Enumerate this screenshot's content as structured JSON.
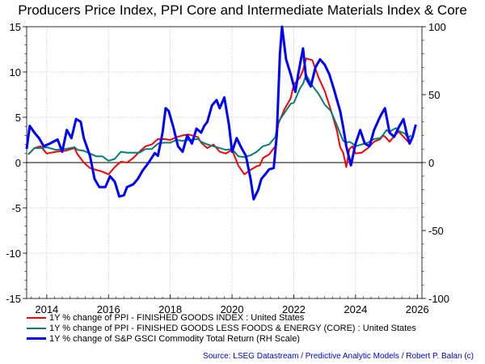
{
  "chart_data": {
    "type": "line",
    "title": "Producers Price Index, PPI Core and Intermediate Materials Index & Core",
    "xlabel": "",
    "ylabel_left": "",
    "ylabel_right": "",
    "x_ticks": [
      "2014",
      "2016",
      "2018",
      "2020",
      "2022",
      "2024",
      "2026"
    ],
    "x_range": [
      2013.35,
      2026.15
    ],
    "y_left": {
      "range": [
        -15,
        15
      ],
      "ticks": [
        "15",
        "10",
        "5",
        "0",
        "-5",
        "-10",
        "-15"
      ]
    },
    "y_right": {
      "range": [
        -100,
        100
      ],
      "ticks": [
        "100",
        "50",
        "0",
        "-50",
        "-100"
      ]
    },
    "grid": true,
    "legend_position": "bottom-left",
    "series": [
      {
        "name": "1Y % change of PPI - FINISHED GOODS INDEX : United States",
        "color": "#ff0000",
        "axis": "left",
        "points": [
          [
            2013.4,
            0.9
          ],
          [
            2013.6,
            1.6
          ],
          [
            2013.8,
            1.8
          ],
          [
            2014.0,
            1.0
          ],
          [
            2014.3,
            1.2
          ],
          [
            2014.6,
            1.3
          ],
          [
            2014.9,
            1.6
          ],
          [
            2015.0,
            0.9
          ],
          [
            2015.2,
            0.0
          ],
          [
            2015.4,
            -0.6
          ],
          [
            2015.6,
            -0.8
          ],
          [
            2015.8,
            -1.0
          ],
          [
            2016.0,
            -1.3
          ],
          [
            2016.2,
            -0.5
          ],
          [
            2016.4,
            0.1
          ],
          [
            2016.6,
            0.0
          ],
          [
            2016.8,
            0.5
          ],
          [
            2017.0,
            1.2
          ],
          [
            2017.2,
            1.8
          ],
          [
            2017.4,
            2.0
          ],
          [
            2017.6,
            2.6
          ],
          [
            2017.8,
            2.6
          ],
          [
            2018.0,
            2.5
          ],
          [
            2018.2,
            2.8
          ],
          [
            2018.4,
            3.0
          ],
          [
            2018.6,
            3.1
          ],
          [
            2018.9,
            2.8
          ],
          [
            2019.0,
            2.2
          ],
          [
            2019.2,
            1.6
          ],
          [
            2019.4,
            2.0
          ],
          [
            2019.6,
            1.2
          ],
          [
            2019.8,
            1.0
          ],
          [
            2020.0,
            1.4
          ],
          [
            2020.2,
            -0.3
          ],
          [
            2020.4,
            -1.3
          ],
          [
            2020.6,
            -0.8
          ],
          [
            2020.8,
            -0.4
          ],
          [
            2020.9,
            -0.3
          ],
          [
            2021.0,
            0.5
          ],
          [
            2021.2,
            0.9
          ],
          [
            2021.4,
            1.8
          ],
          [
            2021.5,
            4.3
          ],
          [
            2021.7,
            5.9
          ],
          [
            2021.9,
            7.1
          ],
          [
            2022.0,
            8.6
          ],
          [
            2022.2,
            9.4
          ],
          [
            2022.3,
            10.2
          ],
          [
            2022.4,
            11.5
          ],
          [
            2022.6,
            11.3
          ],
          [
            2022.8,
            9.4
          ],
          [
            2023.0,
            7.9
          ],
          [
            2023.2,
            5.8
          ],
          [
            2023.4,
            3.5
          ],
          [
            2023.5,
            1.7
          ],
          [
            2023.6,
            1.1
          ],
          [
            2023.7,
            -0.5
          ],
          [
            2023.8,
            1.5
          ],
          [
            2023.9,
            1.8
          ],
          [
            2024.0,
            1.0
          ],
          [
            2024.2,
            1.1
          ],
          [
            2024.4,
            1.6
          ],
          [
            2024.6,
            2.3
          ],
          [
            2024.8,
            2.6
          ],
          [
            2024.9,
            3.0
          ],
          [
            2025.0,
            2.7
          ],
          [
            2025.1,
            2.3
          ],
          [
            2025.3,
            3.1
          ],
          [
            2025.4,
            3.4
          ],
          [
            2025.6,
            2.7
          ],
          [
            2025.7,
            2.3
          ],
          [
            2025.8,
            2.5
          ]
        ]
      },
      {
        "name": "1Y % change of PPI - FINISHED GOODS LESS FOODS & ENERGY (CORE) : United States",
        "color": "#00807a",
        "axis": "left",
        "points": [
          [
            2013.4,
            0.9
          ],
          [
            2013.6,
            1.6
          ],
          [
            2013.8,
            1.6
          ],
          [
            2014.0,
            1.7
          ],
          [
            2014.3,
            1.4
          ],
          [
            2014.6,
            1.5
          ],
          [
            2014.9,
            1.7
          ],
          [
            2015.0,
            1.4
          ],
          [
            2015.2,
            1.3
          ],
          [
            2015.4,
            1.0
          ],
          [
            2015.6,
            0.7
          ],
          [
            2015.8,
            0.7
          ],
          [
            2016.0,
            0.2
          ],
          [
            2016.2,
            0.4
          ],
          [
            2016.4,
            1.2
          ],
          [
            2016.6,
            1.1
          ],
          [
            2016.8,
            1.1
          ],
          [
            2017.0,
            1.1
          ],
          [
            2017.2,
            1.5
          ],
          [
            2017.4,
            1.5
          ],
          [
            2017.6,
            2.1
          ],
          [
            2017.8,
            2.2
          ],
          [
            2018.0,
            2.2
          ],
          [
            2018.2,
            2.5
          ],
          [
            2018.4,
            2.4
          ],
          [
            2018.6,
            2.5
          ],
          [
            2018.9,
            2.6
          ],
          [
            2019.0,
            2.3
          ],
          [
            2019.2,
            2.0
          ],
          [
            2019.4,
            1.8
          ],
          [
            2019.6,
            1.6
          ],
          [
            2019.8,
            1.4
          ],
          [
            2020.0,
            1.5
          ],
          [
            2020.2,
            0.7
          ],
          [
            2020.4,
            0.6
          ],
          [
            2020.6,
            0.8
          ],
          [
            2020.8,
            1.2
          ],
          [
            2020.9,
            1.5
          ],
          [
            2021.0,
            1.8
          ],
          [
            2021.2,
            2.0
          ],
          [
            2021.4,
            2.8
          ],
          [
            2021.5,
            4.5
          ],
          [
            2021.7,
            5.5
          ],
          [
            2021.9,
            6.5
          ],
          [
            2022.0,
            6.6
          ],
          [
            2022.2,
            8.2
          ],
          [
            2022.3,
            8.7
          ],
          [
            2022.4,
            9.7
          ],
          [
            2022.6,
            8.5
          ],
          [
            2022.8,
            7.6
          ],
          [
            2023.0,
            6.4
          ],
          [
            2023.2,
            5.7
          ],
          [
            2023.4,
            4.1
          ],
          [
            2023.5,
            3.2
          ],
          [
            2023.6,
            2.4
          ],
          [
            2023.7,
            2.2
          ],
          [
            2023.8,
            2.3
          ],
          [
            2023.9,
            2.1
          ],
          [
            2024.0,
            1.8
          ],
          [
            2024.2,
            2.0
          ],
          [
            2024.4,
            2.2
          ],
          [
            2024.6,
            2.6
          ],
          [
            2024.8,
            2.7
          ],
          [
            2024.9,
            3.1
          ],
          [
            2025.0,
            3.6
          ],
          [
            2025.1,
            3.4
          ],
          [
            2025.3,
            3.8
          ],
          [
            2025.4,
            3.5
          ],
          [
            2025.6,
            3.2
          ],
          [
            2025.7,
            2.7
          ],
          [
            2025.8,
            3.0
          ]
        ]
      },
      {
        "name": "1Y % change of S&P GSCI Commodity Total Return (RH Scale)",
        "color": "#0000ff",
        "axis": "right",
        "points": [
          [
            2013.35,
            10
          ],
          [
            2013.45,
            27
          ],
          [
            2013.6,
            22
          ],
          [
            2013.75,
            18
          ],
          [
            2013.9,
            12
          ],
          [
            2014.1,
            14
          ],
          [
            2014.35,
            17
          ],
          [
            2014.5,
            8
          ],
          [
            2014.65,
            24
          ],
          [
            2014.8,
            18
          ],
          [
            2014.95,
            32
          ],
          [
            2015.1,
            30
          ],
          [
            2015.2,
            18
          ],
          [
            2015.4,
            5
          ],
          [
            2015.55,
            -12
          ],
          [
            2015.7,
            -18
          ],
          [
            2015.9,
            -18
          ],
          [
            2016.05,
            -10
          ],
          [
            2016.2,
            -14
          ],
          [
            2016.35,
            -25
          ],
          [
            2016.5,
            -24
          ],
          [
            2016.6,
            -18
          ],
          [
            2016.8,
            -16
          ],
          [
            2016.95,
            -12
          ],
          [
            2017.1,
            -6
          ],
          [
            2017.3,
            0
          ],
          [
            2017.5,
            7
          ],
          [
            2017.6,
            5
          ],
          [
            2017.75,
            22
          ],
          [
            2017.85,
            40
          ],
          [
            2017.95,
            38
          ],
          [
            2018.1,
            26
          ],
          [
            2018.25,
            12
          ],
          [
            2018.4,
            8
          ],
          [
            2018.55,
            20
          ],
          [
            2018.7,
            14
          ],
          [
            2018.85,
            25
          ],
          [
            2019.0,
            22
          ],
          [
            2019.1,
            27
          ],
          [
            2019.2,
            30
          ],
          [
            2019.35,
            42
          ],
          [
            2019.5,
            46
          ],
          [
            2019.6,
            40
          ],
          [
            2019.75,
            48
          ],
          [
            2019.9,
            28
          ],
          [
            2020.0,
            8
          ],
          [
            2020.15,
            18
          ],
          [
            2020.3,
            11
          ],
          [
            2020.45,
            5
          ],
          [
            2020.6,
            -12
          ],
          [
            2020.7,
            -27
          ],
          [
            2020.85,
            -20
          ],
          [
            2020.95,
            -12
          ],
          [
            2021.1,
            -8
          ],
          [
            2021.2,
            -5
          ],
          [
            2021.35,
            -4
          ],
          [
            2021.45,
            20
          ],
          [
            2021.55,
            80
          ],
          [
            2021.62,
            100
          ],
          [
            2021.75,
            76
          ],
          [
            2021.9,
            65
          ],
          [
            2022.05,
            52
          ],
          [
            2022.15,
            66
          ],
          [
            2022.3,
            84
          ],
          [
            2022.4,
            62
          ],
          [
            2022.55,
            56
          ],
          [
            2022.7,
            70
          ],
          [
            2022.85,
            76
          ],
          [
            2023.0,
            72
          ],
          [
            2023.15,
            65
          ],
          [
            2023.3,
            54
          ],
          [
            2023.4,
            46
          ],
          [
            2023.5,
            38
          ],
          [
            2023.6,
            26
          ],
          [
            2023.7,
            12
          ],
          [
            2023.85,
            -2
          ],
          [
            2024.0,
            14
          ],
          [
            2024.15,
            24
          ],
          [
            2024.3,
            14
          ],
          [
            2024.45,
            12
          ],
          [
            2024.6,
            24
          ],
          [
            2024.8,
            34
          ],
          [
            2024.95,
            40
          ],
          [
            2025.1,
            22
          ],
          [
            2025.25,
            19
          ],
          [
            2025.4,
            26
          ],
          [
            2025.55,
            32
          ],
          [
            2025.65,
            22
          ],
          [
            2025.75,
            14
          ],
          [
            2025.85,
            19
          ],
          [
            2025.95,
            28
          ]
        ]
      }
    ],
    "source": "Source: LSEG Datastream / Predictive Analytic Models / Robert P. Balan (c)"
  }
}
